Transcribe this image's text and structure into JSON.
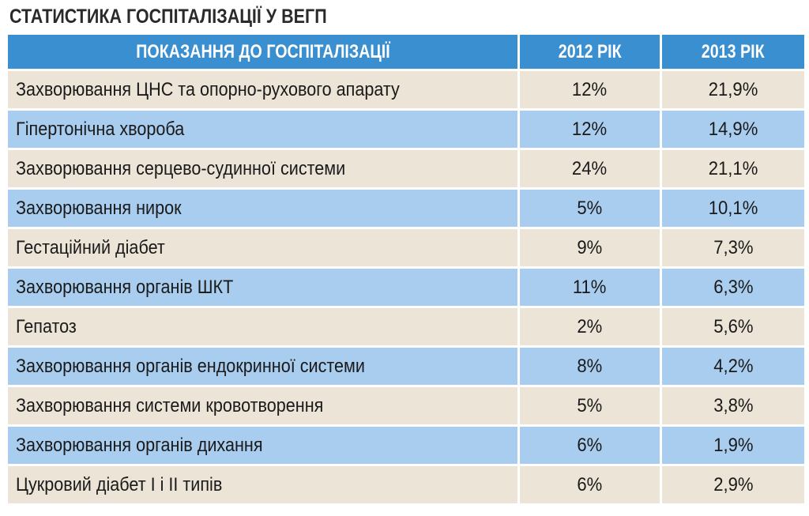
{
  "chart_data": {
    "type": "table",
    "title": "СТАТИСТИКА ГОСПІТАЛІЗАЦІЇ У ВЕГП",
    "columns": [
      "ПОКАЗАННЯ ДО ГОСПІТАЛІЗАЦІЇ",
      "2012 РІК",
      "2013 РІК"
    ],
    "rows": [
      {
        "label": "Захворювання ЦНС та опорно-рухового апарату",
        "y2012": "12%",
        "y2013": "21,9%"
      },
      {
        "label": "Гіпертонічна хвороба",
        "y2012": "12%",
        "y2013": "14,9%"
      },
      {
        "label": "Захворювання серцево-судинної системи",
        "y2012": "24%",
        "y2013": "21,1%"
      },
      {
        "label": "Захворювання нирок",
        "y2012": "5%",
        "y2013": "10,1%"
      },
      {
        "label": "Гестаційний діабет",
        "y2012": "9%",
        "y2013": "7,3%"
      },
      {
        "label": "Захворювання органів ШКТ",
        "y2012": "11%",
        "y2013": "6,3%"
      },
      {
        "label": "Гепатоз",
        "y2012": "2%",
        "y2013": "5,6%"
      },
      {
        "label": "Захворювання органів ендокринної системи",
        "y2012": "8%",
        "y2013": "4,2%"
      },
      {
        "label": "Захворювання системи кровотворення",
        "y2012": "5%",
        "y2013": "3,8%"
      },
      {
        "label": "Захворювання органів дихання",
        "y2012": "6%",
        "y2013": "1,9%"
      },
      {
        "label": "Цукровий діабет І і ІІ типів",
        "y2012": "6%",
        "y2013": "2,9%"
      }
    ]
  },
  "colors": {
    "header_bg": "#3a8fd1",
    "header_text": "#ffffff",
    "row_beige": "#ece4d7",
    "row_blue": "#a9cdef",
    "text": "#1a1a1a",
    "title": "#2a2a2a"
  }
}
